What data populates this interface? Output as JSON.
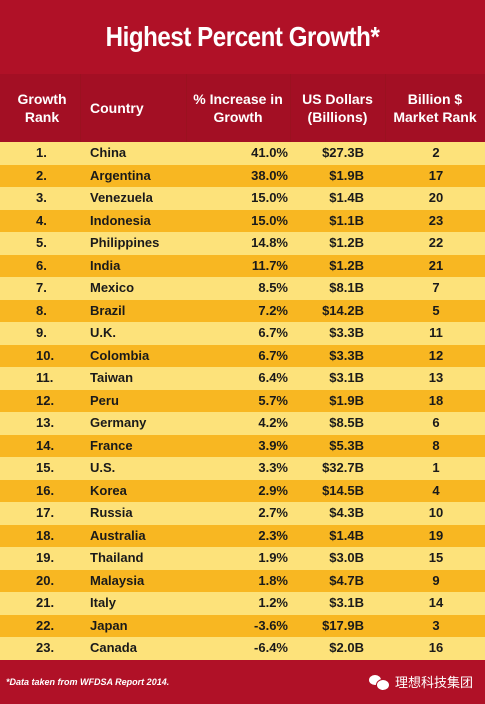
{
  "title": "Highest Percent Growth*",
  "headers": {
    "rank": "Growth\nRank",
    "country": "Country",
    "pct": "% Increase in\nGrowth",
    "usd": "US Dollars\n(Billions)",
    "mkt": "Billion $\nMarket Rank"
  },
  "chart_data": {
    "type": "table",
    "title": "Highest Percent Growth*",
    "columns": [
      "Growth Rank",
      "Country",
      "% Increase in Growth",
      "US Dollars (Billions)",
      "Billion $ Market Rank"
    ],
    "rows": [
      {
        "rank": "1.",
        "country": "China",
        "pct": "41.0%",
        "usd": "$27.3B",
        "mkt": "2"
      },
      {
        "rank": "2.",
        "country": "Argentina",
        "pct": "38.0%",
        "usd": "$1.9B",
        "mkt": "17"
      },
      {
        "rank": "3.",
        "country": "Venezuela",
        "pct": "15.0%",
        "usd": "$1.4B",
        "mkt": "20"
      },
      {
        "rank": "4.",
        "country": "Indonesia",
        "pct": "15.0%",
        "usd": "$1.1B",
        "mkt": "23"
      },
      {
        "rank": "5.",
        "country": "Philippines",
        "pct": "14.8%",
        "usd": "$1.2B",
        "mkt": "22"
      },
      {
        "rank": "6.",
        "country": "India",
        "pct": "11.7%",
        "usd": "$1.2B",
        "mkt": "21"
      },
      {
        "rank": "7.",
        "country": "Mexico",
        "pct": "8.5%",
        "usd": "$8.1B",
        "mkt": "7"
      },
      {
        "rank": "8.",
        "country": "Brazil",
        "pct": "7.2%",
        "usd": "$14.2B",
        "mkt": "5"
      },
      {
        "rank": "9.",
        "country": "U.K.",
        "pct": "6.7%",
        "usd": "$3.3B",
        "mkt": "11"
      },
      {
        "rank": "10.",
        "country": "Colombia",
        "pct": "6.7%",
        "usd": "$3.3B",
        "mkt": "12"
      },
      {
        "rank": "11.",
        "country": "Taiwan",
        "pct": "6.4%",
        "usd": "$3.1B",
        "mkt": "13"
      },
      {
        "rank": "12.",
        "country": "Peru",
        "pct": "5.7%",
        "usd": "$1.9B",
        "mkt": "18"
      },
      {
        "rank": "13.",
        "country": "Germany",
        "pct": "4.2%",
        "usd": "$8.5B",
        "mkt": "6"
      },
      {
        "rank": "14.",
        "country": "France",
        "pct": "3.9%",
        "usd": "$5.3B",
        "mkt": "8"
      },
      {
        "rank": "15.",
        "country": "U.S.",
        "pct": "3.3%",
        "usd": "$32.7B",
        "mkt": "1"
      },
      {
        "rank": "16.",
        "country": "Korea",
        "pct": "2.9%",
        "usd": "$14.5B",
        "mkt": "4"
      },
      {
        "rank": "17.",
        "country": "Russia",
        "pct": "2.7%",
        "usd": "$4.3B",
        "mkt": "10"
      },
      {
        "rank": "18.",
        "country": "Australia",
        "pct": "2.3%",
        "usd": "$1.4B",
        "mkt": "19"
      },
      {
        "rank": "19.",
        "country": "Thailand",
        "pct": "1.9%",
        "usd": "$3.0B",
        "mkt": "15"
      },
      {
        "rank": "20.",
        "country": "Malaysia",
        "pct": "1.8%",
        "usd": "$4.7B",
        "mkt": "9"
      },
      {
        "rank": "21.",
        "country": "Italy",
        "pct": "1.2%",
        "usd": "$3.1B",
        "mkt": "14"
      },
      {
        "rank": "22.",
        "country": "Japan",
        "pct": "-3.6%",
        "usd": "$17.9B",
        "mkt": "3"
      },
      {
        "rank": "23.",
        "country": "Canada",
        "pct": "-6.4%",
        "usd": "$2.0B",
        "mkt": "16"
      }
    ]
  },
  "footnote": "*Data taken from WFDSA Report 2014.",
  "brand": {
    "icon": "wechat-icon",
    "name": "理想科技集团"
  },
  "colors": {
    "header_red": "#b01127",
    "row_light": "#fde27a",
    "row_dark": "#f8b722"
  }
}
